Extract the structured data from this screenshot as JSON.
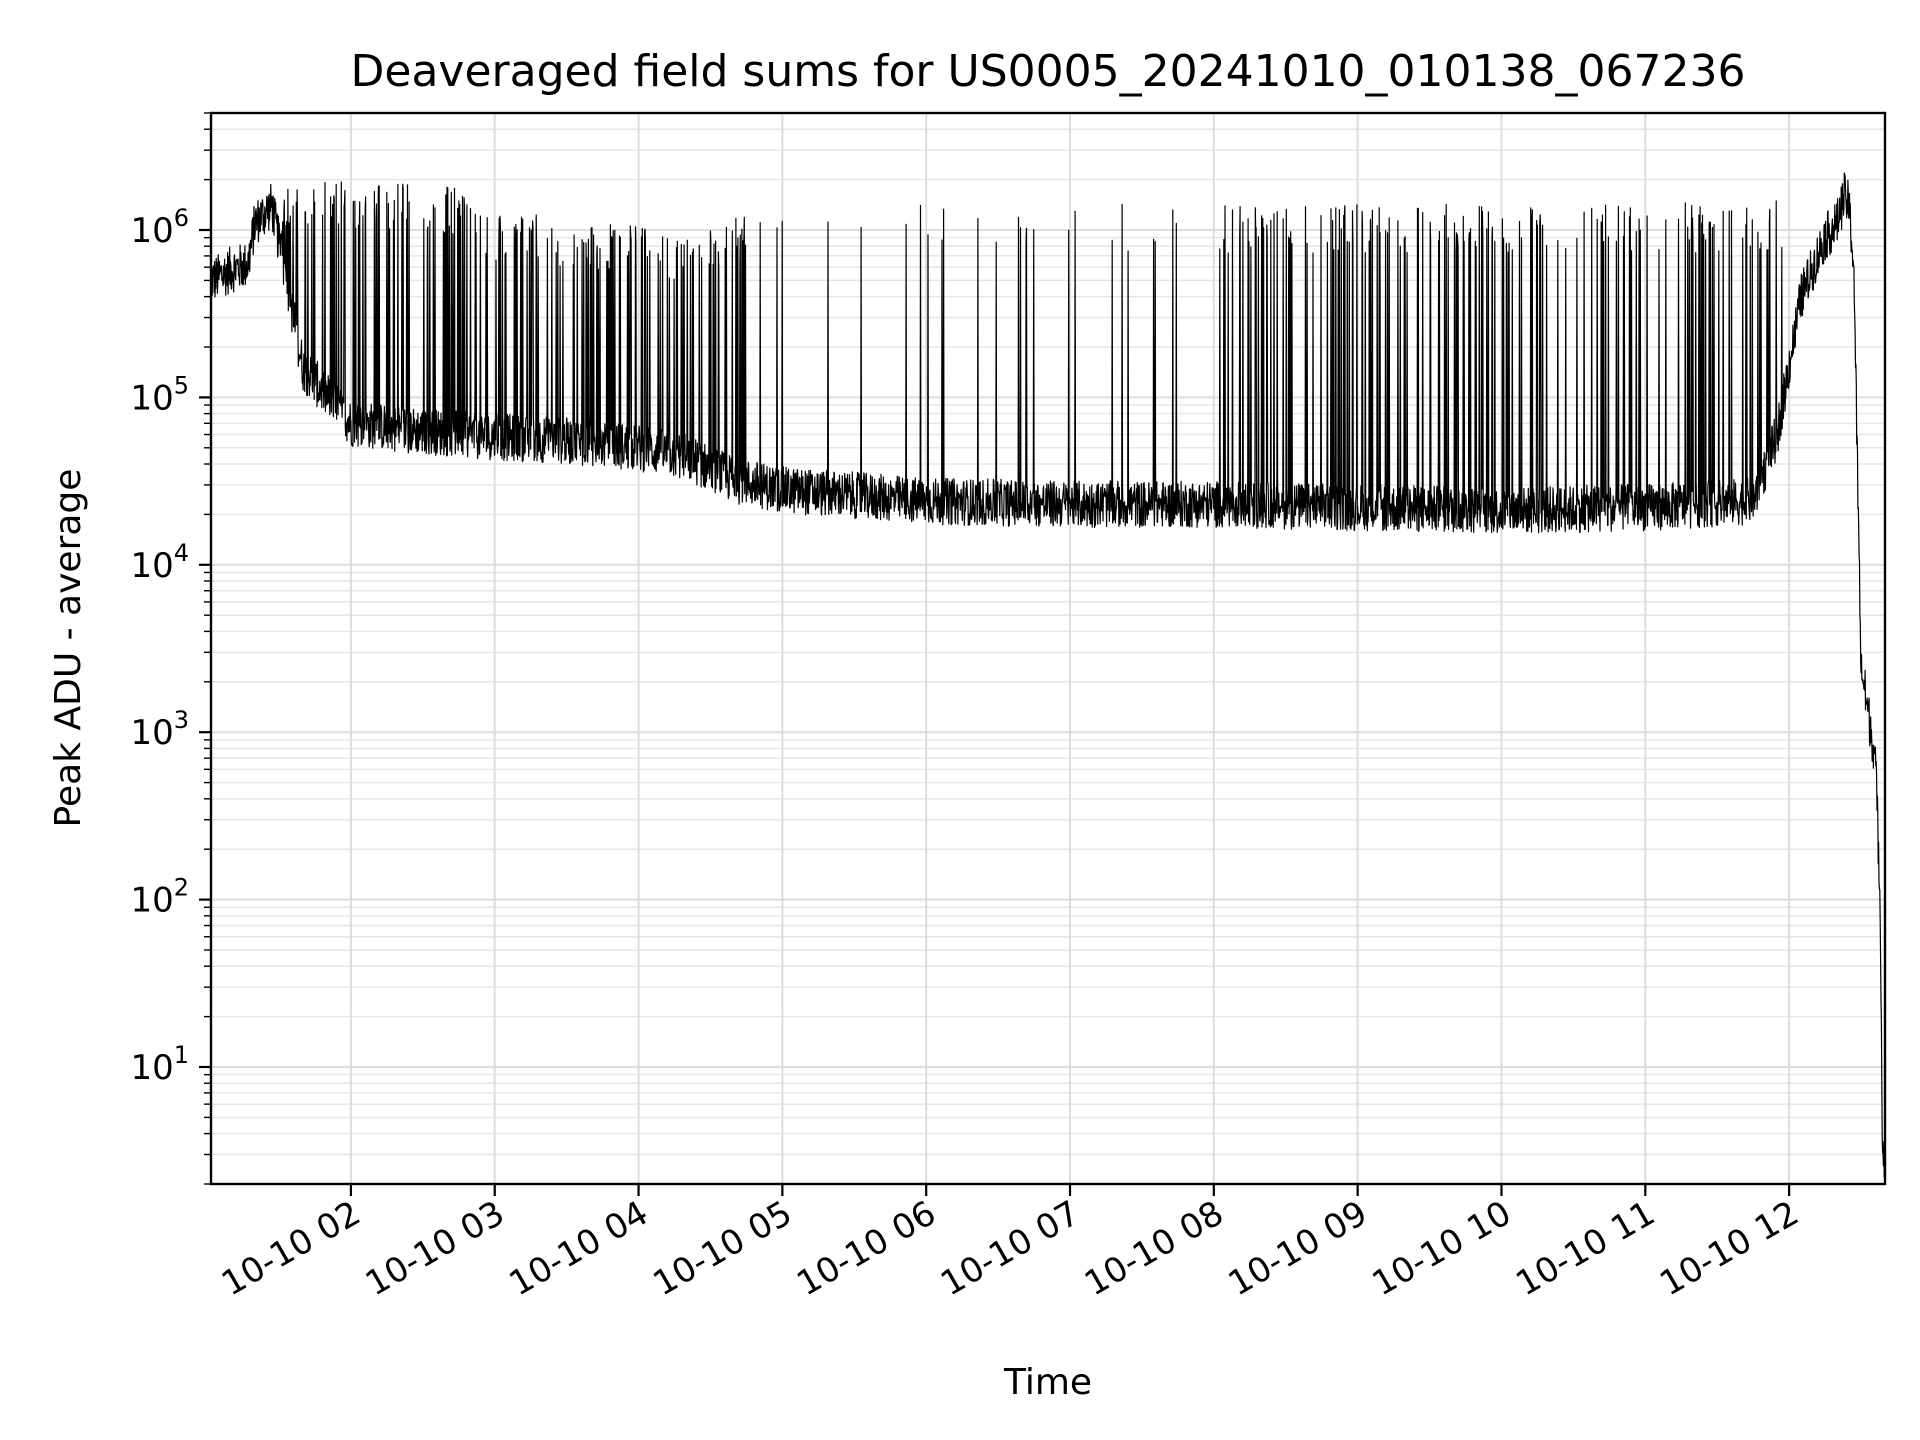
{
  "chart_data": {
    "type": "line",
    "title": "Deaveraged field sums for US0005_20241010_010138_067236",
    "xlabel": "Time",
    "ylabel": "Peak ADU - average",
    "yscale": "log",
    "ylim": [
      2,
      5000000
    ],
    "xlim": [
      "2024-10-10 01:01:38",
      "2024-10-10 12:40:00"
    ],
    "grid": true,
    "x_ticks": [
      "10-10 02",
      "10-10 03",
      "10-10 04",
      "10-10 05",
      "10-10 06",
      "10-10 07",
      "10-10 08",
      "10-10 09",
      "10-10 10",
      "10-10 11",
      "10-10 12"
    ],
    "x_tick_values": [
      "2024-10-10 02:00",
      "2024-10-10 03:00",
      "2024-10-10 04:00",
      "2024-10-10 05:00",
      "2024-10-10 06:00",
      "2024-10-10 07:00",
      "2024-10-10 08:00",
      "2024-10-10 09:00",
      "2024-10-10 10:00",
      "2024-10-10 11:00",
      "2024-10-10 12:00"
    ],
    "y_ticks": [
      {
        "value": 10,
        "base": "10",
        "exp": "1"
      },
      {
        "value": 100,
        "base": "10",
        "exp": "2"
      },
      {
        "value": 1000,
        "base": "10",
        "exp": "3"
      },
      {
        "value": 10000,
        "base": "10",
        "exp": "4"
      },
      {
        "value": 100000,
        "base": "10",
        "exp": "5"
      },
      {
        "value": 1000000,
        "base": "10",
        "exp": "6"
      }
    ],
    "series": [
      {
        "color": "#000000",
        "profile": {
          "x": [
            "2024-10-10 01:02",
            "2024-10-10 01:10",
            "2024-10-10 01:17",
            "2024-10-10 01:20",
            "2024-10-10 01:27",
            "2024-10-10 01:32",
            "2024-10-10 01:40",
            "2024-10-10 02:00",
            "2024-10-10 02:20",
            "2024-10-10 02:45",
            "2024-10-10 03:00",
            "2024-10-10 03:30",
            "2024-10-10 04:00",
            "2024-10-10 04:20",
            "2024-10-10 04:40",
            "2024-10-10 05:00",
            "2024-10-10 05:30",
            "2024-10-10 06:00",
            "2024-10-10 07:00",
            "2024-10-10 08:00",
            "2024-10-10 09:00",
            "2024-10-10 10:00",
            "2024-10-10 11:00",
            "2024-10-10 11:45",
            "2024-10-10 11:55",
            "2024-10-10 12:05",
            "2024-10-10 12:15",
            "2024-10-10 12:20",
            "2024-10-10 12:23",
            "2024-10-10 12:25",
            "2024-10-10 12:27",
            "2024-10-10 12:30",
            "2024-10-10 12:33",
            "2024-10-10 12:36",
            "2024-10-10 12:38",
            "2024-10-10 12:39"
          ],
          "baseline": [
            500000,
            580000,
            620000,
            1100000,
            1400000,
            600000,
            150000,
            70000,
            65000,
            60000,
            58000,
            55000,
            50000,
            44000,
            32000,
            28000,
            26000,
            24000,
            23000,
            23000,
            22000,
            21000,
            22000,
            24000,
            60000,
            400000,
            900000,
            1100000,
            1600000,
            1400000,
            600000,
            2500,
            1300,
            700,
            100,
            3
          ],
          "peaks": [
            500000,
            580000,
            620000,
            1100000,
            1400000,
            1400000,
            1500000,
            1500000,
            1500000,
            1400000,
            1000000,
            900000,
            800000,
            700000,
            900000,
            1000000,
            1100000,
            1100000,
            1100000,
            1100000,
            1100000,
            1100000,
            1100000,
            1100000,
            1150000,
            1300000,
            1700000,
            1700000,
            1600000,
            1400000,
            600000,
            2500,
            1300,
            700,
            100,
            3
          ]
        },
        "spike_density": "high in 01:30-04:45, sparse in 05:00-08:00, dense in 08:00-11:55"
      }
    ]
  }
}
